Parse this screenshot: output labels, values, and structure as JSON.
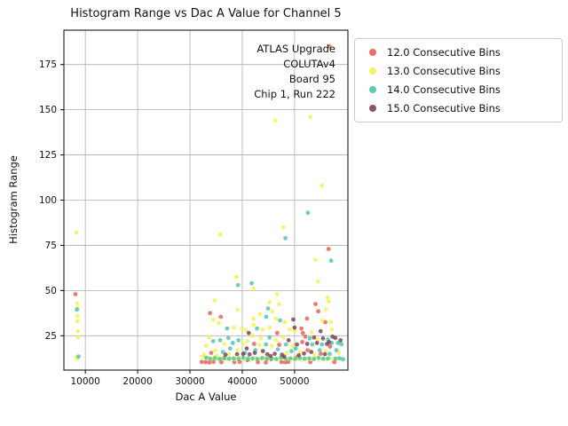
{
  "title": "Histogram Range vs Dac A Value for Channel 5",
  "chart_data": {
    "type": "scatter",
    "xlabel": "Dac A Value",
    "ylabel": "Histogram Range",
    "xlim": [
      5900,
      60200
    ],
    "ylim": [
      6,
      194
    ],
    "x_ticks": [
      10000,
      20000,
      30000,
      40000,
      50000
    ],
    "y_ticks": [
      25,
      50,
      75,
      100,
      125,
      150,
      175
    ],
    "grid": true,
    "legend_position": "upper right, outside axes",
    "annotation": [
      "ATLAS Upgrade",
      "COLUTAv4",
      "Board 95",
      "Chip 1, Run 222"
    ],
    "series": [
      {
        "name": "12.0 Consecutive Bins",
        "color": "#e9534b",
        "points": [
          [
            8100,
            48
          ],
          [
            56650,
            185
          ],
          [
            56500,
            73
          ],
          [
            33850,
            37.5
          ],
          [
            35900,
            35.5
          ],
          [
            54000,
            42.5
          ],
          [
            54530,
            38.5
          ],
          [
            52370,
            34.5
          ],
          [
            55880,
            32.5
          ],
          [
            51300,
            29
          ],
          [
            51580,
            26.5
          ],
          [
            46670,
            26.5
          ],
          [
            52030,
            24.5
          ],
          [
            51470,
            21.5
          ],
          [
            42260,
            20.5
          ],
          [
            47060,
            20
          ],
          [
            34070,
            15.5
          ],
          [
            36500,
            12.5
          ],
          [
            41000,
            11.5
          ],
          [
            45500,
            12
          ],
          [
            50500,
            13
          ],
          [
            55000,
            15
          ],
          [
            52500,
            17
          ],
          [
            56800,
            19
          ],
          [
            32250,
            10.5
          ],
          [
            33000,
            10.4
          ],
          [
            33700,
            10.2
          ],
          [
            34500,
            10.5
          ],
          [
            36000,
            10.3
          ],
          [
            38500,
            10.4
          ],
          [
            39500,
            10.5
          ],
          [
            43000,
            10.3
          ],
          [
            44500,
            10.2
          ],
          [
            47500,
            10.4
          ],
          [
            48200,
            10.3
          ],
          [
            48800,
            10.5
          ],
          [
            53000,
            10.4
          ],
          [
            57600,
            10.4
          ]
        ]
      },
      {
        "name": "13.0 Consecutive Bins",
        "color": "#f3f24b",
        "points": [
          [
            8300,
            82
          ],
          [
            8450,
            43
          ],
          [
            8500,
            40.5
          ],
          [
            8450,
            36
          ],
          [
            8500,
            33
          ],
          [
            8600,
            27.5
          ],
          [
            8600,
            24
          ],
          [
            8300,
            13
          ],
          [
            8450,
            12.3
          ],
          [
            53000,
            146
          ],
          [
            46300,
            144
          ],
          [
            55250,
            108
          ],
          [
            47850,
            85
          ],
          [
            35800,
            81
          ],
          [
            54000,
            67
          ],
          [
            38900,
            57.5
          ],
          [
            54500,
            55
          ],
          [
            42200,
            51
          ],
          [
            46700,
            48
          ],
          [
            56300,
            46
          ],
          [
            34700,
            44.5
          ],
          [
            45200,
            43.5
          ],
          [
            47060,
            42.5
          ],
          [
            56560,
            44
          ],
          [
            39100,
            39.5
          ],
          [
            45760,
            38.5
          ],
          [
            55990,
            39.5
          ],
          [
            43390,
            37
          ],
          [
            42150,
            34.5
          ],
          [
            46440,
            34.5
          ],
          [
            55310,
            33.5
          ],
          [
            56900,
            32.5
          ],
          [
            34450,
            34
          ],
          [
            35500,
            32
          ],
          [
            38400,
            29.5
          ],
          [
            39900,
            29
          ],
          [
            40700,
            28
          ],
          [
            42150,
            31
          ],
          [
            43950,
            28.5
          ],
          [
            45250,
            29.5
          ],
          [
            49040,
            28.5
          ],
          [
            50050,
            27.5
          ],
          [
            53280,
            27
          ],
          [
            57120,
            28.5
          ],
          [
            48140,
            32.5
          ],
          [
            33680,
            24
          ],
          [
            33100,
            19.5
          ],
          [
            36550,
            20.5
          ],
          [
            40110,
            20.5
          ],
          [
            40960,
            22
          ],
          [
            34860,
            17
          ],
          [
            39100,
            17
          ],
          [
            41980,
            25
          ],
          [
            43560,
            23.5
          ],
          [
            46440,
            22.5
          ],
          [
            47800,
            24
          ],
          [
            43280,
            20
          ],
          [
            45650,
            19.5
          ],
          [
            49610,
            19.5
          ],
          [
            54410,
            23
          ],
          [
            44000,
            16.5
          ],
          [
            48500,
            15.5
          ],
          [
            51000,
            16
          ],
          [
            53800,
            14.5
          ],
          [
            56000,
            16.5
          ],
          [
            37500,
            15
          ],
          [
            35200,
            14
          ],
          [
            58500,
            15.5
          ],
          [
            32700,
            14.7
          ],
          [
            32400,
            13.5
          ],
          [
            33300,
            12.8
          ],
          [
            34000,
            12.2
          ],
          [
            34700,
            13
          ],
          [
            35400,
            12
          ],
          [
            36200,
            12.6
          ],
          [
            37000,
            12
          ],
          [
            37800,
            12.4
          ],
          [
            38600,
            12
          ],
          [
            39400,
            12.7
          ],
          [
            40200,
            12.1
          ],
          [
            41000,
            12.5
          ],
          [
            41800,
            12
          ],
          [
            42600,
            12.3
          ],
          [
            43400,
            12
          ],
          [
            44200,
            12.6
          ],
          [
            45000,
            12.1
          ],
          [
            45800,
            12.4
          ],
          [
            46600,
            12
          ],
          [
            47400,
            12.5
          ],
          [
            48200,
            12
          ],
          [
            49000,
            12.3
          ],
          [
            49800,
            12.1
          ],
          [
            50600,
            12.5
          ],
          [
            51400,
            12
          ],
          [
            52200,
            12.4
          ],
          [
            53000,
            12.1
          ],
          [
            53800,
            12.5
          ],
          [
            54600,
            12
          ],
          [
            55400,
            12.3
          ],
          [
            56200,
            12.1
          ],
          [
            57000,
            12.4
          ],
          [
            58200,
            12.1
          ],
          [
            59000,
            12.3
          ]
        ]
      },
      {
        "name": "14.0 Consecutive Bins",
        "color": "#43c2a8",
        "points": [
          [
            8400,
            39.5
          ],
          [
            8700,
            13.5
          ],
          [
            52550,
            93
          ],
          [
            48250,
            79
          ],
          [
            57000,
            66.5
          ],
          [
            41800,
            54
          ],
          [
            39200,
            53
          ],
          [
            44920,
            40
          ],
          [
            44580,
            35.5
          ],
          [
            47230,
            33.5
          ],
          [
            37100,
            29
          ],
          [
            42820,
            29
          ],
          [
            45200,
            24
          ],
          [
            34460,
            22
          ],
          [
            35760,
            22.5
          ],
          [
            37340,
            23.7
          ],
          [
            38190,
            21
          ],
          [
            39270,
            22.5
          ],
          [
            37680,
            18
          ],
          [
            44530,
            20.2
          ],
          [
            48360,
            20.2
          ],
          [
            52880,
            23.5
          ],
          [
            56390,
            23
          ],
          [
            53390,
            20.2
          ],
          [
            55260,
            20.2
          ],
          [
            57120,
            21
          ],
          [
            42500,
            17
          ],
          [
            46800,
            17.5
          ],
          [
            50200,
            18
          ],
          [
            36300,
            16
          ],
          [
            40500,
            15.5
          ],
          [
            49400,
            16.5
          ],
          [
            54800,
            17
          ],
          [
            56700,
            15
          ],
          [
            58300,
            21
          ],
          [
            59000,
            20.3
          ],
          [
            58000,
            17
          ],
          [
            33100,
            12.8
          ],
          [
            33900,
            12.3
          ],
          [
            34800,
            12.6
          ],
          [
            35700,
            12.2
          ],
          [
            36600,
            12.7
          ],
          [
            37500,
            12.3
          ],
          [
            38400,
            12.5
          ],
          [
            39300,
            12.2
          ],
          [
            40200,
            12.8
          ],
          [
            41100,
            12.3
          ],
          [
            42000,
            12.5
          ],
          [
            42900,
            12.2
          ],
          [
            43800,
            12.7
          ],
          [
            44700,
            12.3
          ],
          [
            45600,
            12.5
          ],
          [
            46500,
            12.2
          ],
          [
            47400,
            12.8
          ],
          [
            48300,
            12.3
          ],
          [
            49200,
            12.5
          ],
          [
            50100,
            12.2
          ],
          [
            51000,
            12.7
          ],
          [
            51900,
            12.3
          ],
          [
            52800,
            12.5
          ],
          [
            53700,
            12.2
          ],
          [
            54600,
            12.8
          ],
          [
            55500,
            12.3
          ],
          [
            56400,
            12.5
          ],
          [
            57800,
            12.4
          ],
          [
            58600,
            12.6
          ],
          [
            59300,
            12
          ]
        ]
      },
      {
        "name": "15.0 Consecutive Bins",
        "color": "#73394a",
        "points": [
          [
            41240,
            26.5
          ],
          [
            40850,
            18
          ],
          [
            40170,
            15
          ],
          [
            41400,
            14.7
          ],
          [
            49770,
            34
          ],
          [
            50000,
            29.5
          ],
          [
            48870,
            22.5
          ],
          [
            50460,
            20.2
          ],
          [
            43950,
            16.5
          ],
          [
            46200,
            15
          ],
          [
            54970,
            27.5
          ],
          [
            53730,
            24
          ],
          [
            55430,
            23.5
          ],
          [
            57240,
            24.5
          ],
          [
            52420,
            20.5
          ],
          [
            54290,
            21
          ],
          [
            56220,
            20.5
          ],
          [
            44800,
            14.8
          ],
          [
            47600,
            14.5
          ],
          [
            51800,
            15.2
          ],
          [
            53200,
            16
          ],
          [
            55800,
            14.8
          ],
          [
            36800,
            14.5
          ],
          [
            39000,
            14.8
          ],
          [
            42400,
            15.5
          ],
          [
            45400,
            13.8
          ],
          [
            48000,
            13.5
          ],
          [
            50800,
            14.2
          ],
          [
            57800,
            23.8
          ],
          [
            58800,
            22.5
          ],
          [
            56600,
            21.5
          ]
        ]
      }
    ]
  }
}
